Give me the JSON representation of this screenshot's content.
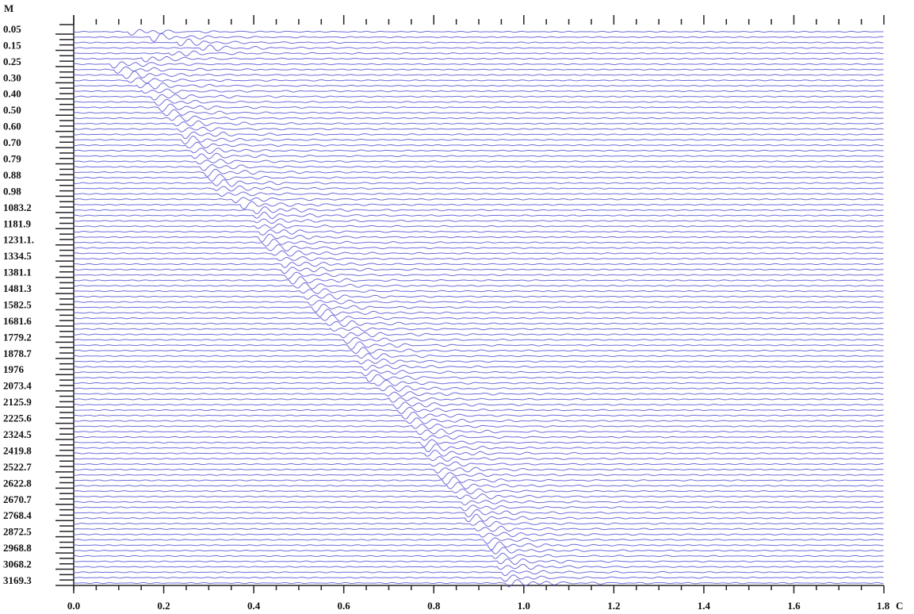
{
  "chart_data": {
    "type": "seismic",
    "ylabel": "M",
    "xlabel": "C",
    "xlim": [
      0,
      1.8
    ],
    "xticks": [
      {
        "value": 0,
        "label": "0.0"
      },
      0.2,
      0.4,
      0.6,
      0.8,
      {
        "value": 1,
        "label": "1.0"
      },
      1.2,
      1.4,
      1.6,
      1.8
    ],
    "color": "#5c5cd6",
    "categories": [
      "0.05",
      null,
      null,
      "0.15",
      null,
      null,
      "0.25",
      null,
      null,
      "0.30",
      null,
      null,
      "0.40",
      null,
      null,
      "0.50",
      null,
      null,
      "0.60",
      null,
      null,
      "0.70",
      null,
      null,
      "0.79",
      null,
      null,
      "0.88",
      null,
      null,
      "0.98",
      null,
      null,
      "1083.2",
      null,
      null,
      "1181.9",
      null,
      null,
      "1231.1.",
      null,
      null,
      "1334.5",
      null,
      null,
      "1381.1",
      null,
      null,
      "1481.3",
      null,
      null,
      "1582.5",
      null,
      null,
      "1681.6",
      null,
      null,
      "1779.2",
      null,
      null,
      "1878.7",
      null,
      null,
      "1976",
      null,
      null,
      "2073.4",
      null,
      null,
      "2125.9",
      null,
      null,
      "2225.6",
      null,
      null,
      "2324.5",
      null,
      null,
      "2419.8",
      null,
      null,
      "2522.7",
      null,
      null,
      "2622.8",
      null,
      null,
      "2670.7",
      null,
      null,
      "2768.4",
      null,
      null,
      "2872.5",
      null,
      null,
      "2968.8",
      null,
      null,
      "3068.2",
      null,
      null,
      "3169.3"
    ],
    "values": [
      0.12,
      0.17,
      0.23,
      0.28,
      0.21,
      0.15,
      0.08,
      0.09,
      0.11,
      0.12,
      0.14,
      0.15,
      0.17,
      0.18,
      0.19,
      0.2,
      0.21,
      0.22,
      0.23,
      0.24,
      0.24,
      0.25,
      0.26,
      0.26,
      0.27,
      0.28,
      0.29,
      0.3,
      0.31,
      0.31,
      0.32,
      0.35,
      0.37,
      0.4,
      0.4,
      0.4,
      0.4,
      0.41,
      0.41,
      0.42,
      0.43,
      0.44,
      0.45,
      0.46,
      0.46,
      0.47,
      0.48,
      0.49,
      0.5,
      0.51,
      0.52,
      0.53,
      0.54,
      0.55,
      0.56,
      0.57,
      0.59,
      0.6,
      0.61,
      0.62,
      0.63,
      0.63,
      0.64,
      0.64,
      0.65,
      0.67,
      0.68,
      0.69,
      0.7,
      0.71,
      0.72,
      0.73,
      0.74,
      0.75,
      0.76,
      0.77,
      0.77,
      0.78,
      0.78,
      0.79,
      0.79,
      0.8,
      0.81,
      0.82,
      0.83,
      0.84,
      0.85,
      0.86,
      0.86,
      0.87,
      0.87,
      0.88,
      0.89,
      0.9,
      0.91,
      0.92,
      0.93,
      0.93,
      0.94,
      0.94,
      0.95,
      0.95,
      0.96
    ]
  }
}
